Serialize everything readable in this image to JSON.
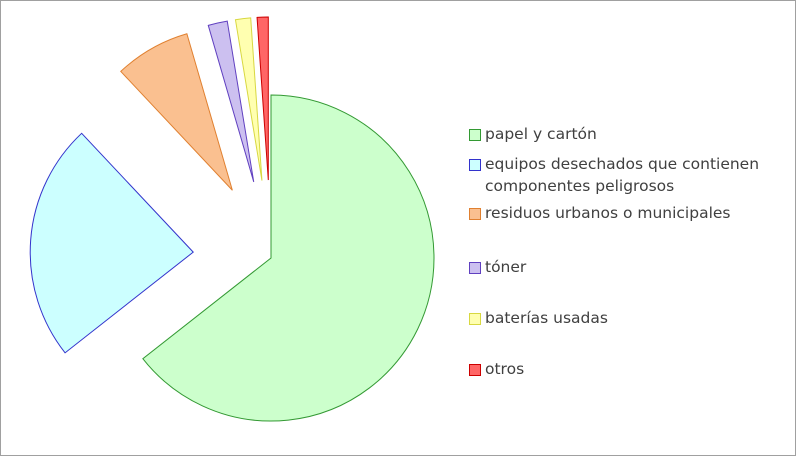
{
  "chart_data": {
    "type": "pie",
    "explode": true,
    "legend": "right",
    "categories": [
      "papel y cartón",
      "equipos desechados que contienen componentes peligrosos",
      "residuos urbanos o municipales",
      "tóner",
      "baterías usadas",
      "otros"
    ],
    "values": [
      64.4,
      23.6,
      7.5,
      1.9,
      1.5,
      1.1
    ],
    "colors": [
      "#ccffcc",
      "#ccffff",
      "#fac090",
      "#ccc0f0",
      "#ffffb0",
      "#ff6666"
    ],
    "edge_colors": [
      "#339933",
      "#3333cc",
      "#e08030",
      "#6040c0",
      "#d8d840",
      "#cc0000"
    ]
  }
}
